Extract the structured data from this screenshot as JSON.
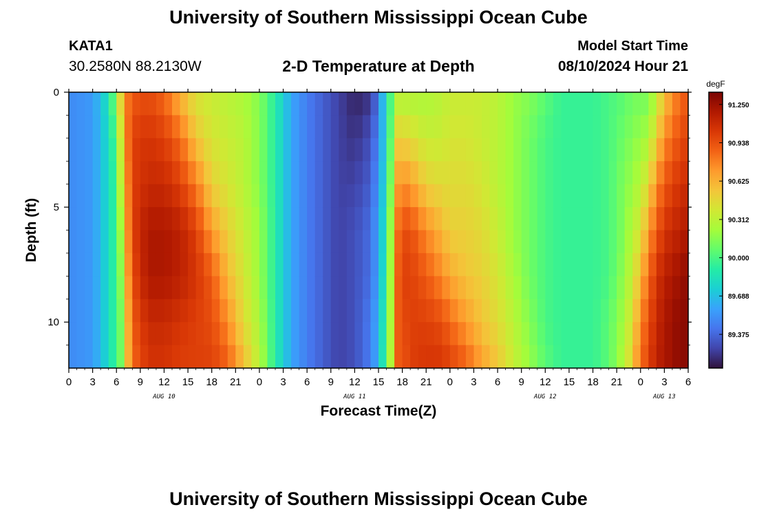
{
  "header": {
    "title": "University of Southern Mississippi Ocean Cube",
    "station_id": "KATA1",
    "station_location": "30.2580N  88.2130W",
    "chart_title": "2-D Temperature at Depth",
    "model_label": "Model Start Time",
    "model_time": "08/10/2024 Hour 21"
  },
  "footer": {
    "title": "University of Southern Mississippi Ocean Cube"
  },
  "chart_data": {
    "type": "heatmap",
    "title": "2-D Temperature at Depth",
    "xlabel": "Forecast Time(Z)",
    "ylabel": "Depth (ft)",
    "x_unit": "forecast hour",
    "xlim": [
      0,
      78
    ],
    "ylim": [
      0,
      12
    ],
    "y_inverted": true,
    "x_ticks": [
      0,
      3,
      6,
      9,
      12,
      15,
      18,
      21,
      24,
      27,
      30,
      33,
      36,
      39,
      42,
      45,
      48,
      51,
      54,
      57,
      60,
      63,
      66,
      69,
      72,
      75,
      78
    ],
    "x_tick_labels": [
      "0",
      "3",
      "6",
      "9",
      "12",
      "15",
      "18",
      "21",
      "0",
      "3",
      "6",
      "9",
      "12",
      "15",
      "18",
      "21",
      "0",
      "3",
      "6",
      "9",
      "12",
      "15",
      "18",
      "21",
      "0",
      "3",
      "6"
    ],
    "date_labels": [
      {
        "text": "AUG 10",
        "x": 12
      },
      {
        "text": "AUG 11",
        "x": 36
      },
      {
        "text": "AUG 12",
        "x": 60
      },
      {
        "text": "AUG 13",
        "x": 75
      }
    ],
    "y_ticks": [
      0,
      5,
      10
    ],
    "y_tick_labels": [
      "0",
      "5",
      "10"
    ],
    "colorbar": {
      "unit": "degF",
      "min": 89.1,
      "max": 91.35,
      "ticks": [
        91.25,
        90.938,
        90.625,
        90.312,
        90.0,
        89.688,
        89.375
      ],
      "tick_labels": [
        "91.250",
        "90.938",
        "90.625",
        "90.312",
        "90.000",
        "89.688",
        "89.375"
      ],
      "colors": [
        "#30123b",
        "#4145ab",
        "#4675ed",
        "#39a2fc",
        "#1bcfd4",
        "#24eca6",
        "#61fc6c",
        "#a4fc3b",
        "#d1e834",
        "#f3c63a",
        "#fe9b2d",
        "#f36315",
        "#d93806",
        "#b11901",
        "#7a0402"
      ]
    },
    "profile_hours": [
      0,
      3,
      5,
      6,
      6.5,
      7,
      8,
      10,
      12,
      14,
      16,
      18,
      20,
      22,
      24,
      26,
      28,
      30,
      32,
      34,
      36,
      38,
      39,
      40,
      41,
      41.5,
      42,
      43,
      45,
      47,
      48,
      50,
      52,
      54,
      56,
      58,
      60,
      62,
      64,
      66,
      68,
      70,
      71,
      72,
      73,
      74,
      75,
      76,
      77,
      78
    ],
    "profile_depths": [
      0,
      2,
      4,
      6,
      8,
      10,
      12
    ],
    "profile_values": [
      [
        89.5,
        89.5,
        89.5,
        89.5,
        89.5,
        89.5,
        89.5
      ],
      [
        89.55,
        89.55,
        89.55,
        89.55,
        89.55,
        89.55,
        89.55
      ],
      [
        89.85,
        89.8,
        89.8,
        89.8,
        89.8,
        89.8,
        89.8
      ],
      [
        90.2,
        90.05,
        90.0,
        90.0,
        90.0,
        90.0,
        90.0
      ],
      [
        90.5,
        90.35,
        90.3,
        90.2,
        90.15,
        90.1,
        90.1
      ],
      [
        90.75,
        90.7,
        90.6,
        90.55,
        90.5,
        90.4,
        90.4
      ],
      [
        90.9,
        91.0,
        91.0,
        91.0,
        90.95,
        90.9,
        90.85
      ],
      [
        90.95,
        91.05,
        91.1,
        91.2,
        91.2,
        91.1,
        91.05
      ],
      [
        90.85,
        91.0,
        91.1,
        91.2,
        91.2,
        91.1,
        91.05
      ],
      [
        90.6,
        90.85,
        91.0,
        91.15,
        91.15,
        91.05,
        91.0
      ],
      [
        90.4,
        90.55,
        90.8,
        91.0,
        91.05,
        91.0,
        91.0
      ],
      [
        90.35,
        90.4,
        90.5,
        90.7,
        90.9,
        90.95,
        91.0
      ],
      [
        90.3,
        90.35,
        90.4,
        90.5,
        90.6,
        90.75,
        90.9
      ],
      [
        90.25,
        90.3,
        90.3,
        90.35,
        90.4,
        90.45,
        90.6
      ],
      [
        90.15,
        90.15,
        90.15,
        90.2,
        90.2,
        90.25,
        90.3
      ],
      [
        89.9,
        89.9,
        89.9,
        89.9,
        89.9,
        89.9,
        89.9
      ],
      [
        89.6,
        89.6,
        89.6,
        89.6,
        89.6,
        89.6,
        89.6
      ],
      [
        89.45,
        89.45,
        89.45,
        89.45,
        89.45,
        89.45,
        89.45
      ],
      [
        89.35,
        89.35,
        89.35,
        89.35,
        89.35,
        89.35,
        89.35
      ],
      [
        89.25,
        89.25,
        89.25,
        89.25,
        89.25,
        89.25,
        89.25
      ],
      [
        89.15,
        89.2,
        89.25,
        89.3,
        89.3,
        89.3,
        89.3
      ],
      [
        89.2,
        89.3,
        89.35,
        89.4,
        89.4,
        89.45,
        89.45
      ],
      [
        89.45,
        89.5,
        89.55,
        89.6,
        89.6,
        89.65,
        89.65
      ],
      [
        89.85,
        89.8,
        89.85,
        89.9,
        89.95,
        90.0,
        90.05
      ],
      [
        90.15,
        90.3,
        90.4,
        90.5,
        90.5,
        90.5,
        90.5
      ],
      [
        90.25,
        90.5,
        90.7,
        90.85,
        90.9,
        90.9,
        90.9
      ],
      [
        90.25,
        90.5,
        90.75,
        90.95,
        91.0,
        90.95,
        90.9
      ],
      [
        90.25,
        90.45,
        90.7,
        90.95,
        91.0,
        91.0,
        91.0
      ],
      [
        90.25,
        90.35,
        90.5,
        90.75,
        90.9,
        91.0,
        91.05
      ],
      [
        90.3,
        90.35,
        90.45,
        90.6,
        90.75,
        90.95,
        91.05
      ],
      [
        90.35,
        90.4,
        90.45,
        90.5,
        90.65,
        90.85,
        91.0
      ],
      [
        90.35,
        90.4,
        90.45,
        90.5,
        90.55,
        90.7,
        90.9
      ],
      [
        90.35,
        90.35,
        90.4,
        90.45,
        90.5,
        90.55,
        90.7
      ],
      [
        90.3,
        90.3,
        90.3,
        90.35,
        90.4,
        90.45,
        90.55
      ],
      [
        90.2,
        90.2,
        90.2,
        90.2,
        90.25,
        90.3,
        90.35
      ],
      [
        90.15,
        90.1,
        90.1,
        90.1,
        90.1,
        90.15,
        90.2
      ],
      [
        90.05,
        90.0,
        90.0,
        90.0,
        90.0,
        90.0,
        90.05
      ],
      [
        89.95,
        89.95,
        89.95,
        89.95,
        89.95,
        89.95,
        89.95
      ],
      [
        89.95,
        89.95,
        89.95,
        89.95,
        89.95,
        89.95,
        89.95
      ],
      [
        89.95,
        89.95,
        89.95,
        89.95,
        89.95,
        89.95,
        89.95
      ],
      [
        90.0,
        90.0,
        90.0,
        90.0,
        90.0,
        90.05,
        90.05
      ],
      [
        90.05,
        90.1,
        90.15,
        90.15,
        90.2,
        90.25,
        90.3
      ],
      [
        90.1,
        90.15,
        90.2,
        90.3,
        90.35,
        90.45,
        90.55
      ],
      [
        90.1,
        90.2,
        90.3,
        90.4,
        90.6,
        90.75,
        90.85
      ],
      [
        90.1,
        90.25,
        90.45,
        90.7,
        90.85,
        90.95,
        91.0
      ],
      [
        90.3,
        90.5,
        90.75,
        90.9,
        91.05,
        91.1,
        91.15
      ],
      [
        90.55,
        90.75,
        90.9,
        91.05,
        91.15,
        91.2,
        91.2
      ],
      [
        90.7,
        90.85,
        91.0,
        91.1,
        91.2,
        91.25,
        91.25
      ],
      [
        90.85,
        90.95,
        91.05,
        91.15,
        91.25,
        91.3,
        91.3
      ],
      [
        90.9,
        91.0,
        91.1,
        91.2,
        91.3,
        91.3,
        91.3
      ]
    ]
  }
}
